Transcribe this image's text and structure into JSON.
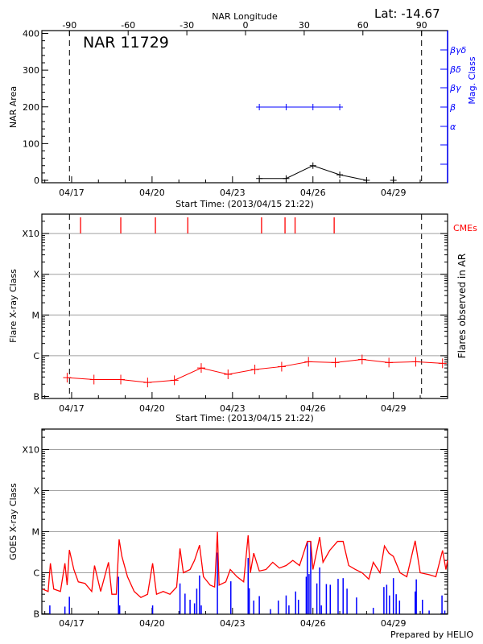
{
  "header": {
    "latitude": "Lat: -14.67",
    "region_label": "NAR 11729",
    "footer": "Prepared by HELIO"
  },
  "colors": {
    "area": "#000000",
    "mag_class": "#0000ff",
    "flares": "#ff0000",
    "cmes": "#ff0000",
    "goes": "#ff0000",
    "goes_flares": "#0000ff",
    "grid": "#a0a0a0"
  },
  "chart_data": [
    {
      "type": "line",
      "panel": "top",
      "top_xlabel": "NAR Longitude",
      "top_ticks": [
        -90,
        -60,
        -30,
        0,
        30,
        60,
        90
      ],
      "xlabel": "Start Time: (2013/04/15 21:22)",
      "ylabel": "NAR Area",
      "right_ylabel": "Mag. Class",
      "ylim": [
        0,
        400
      ],
      "yticks": [
        0,
        100,
        200,
        300,
        400
      ],
      "xlim": [
        "2013-04-15 21:22",
        "2013-05-01 00:30"
      ],
      "xtick_labels": [
        {
          "date": "2013-04-17",
          "label": "04/17"
        },
        {
          "date": "2013-04-20",
          "label": "04/20"
        },
        {
          "date": "2013-04-23",
          "label": "04/23"
        },
        {
          "date": "2013-04-26",
          "label": "04/26"
        },
        {
          "date": "2013-04-29",
          "label": "04/29"
        }
      ],
      "limb_longitudes": [
        -90,
        90
      ],
      "mag_classes": [
        "α",
        "β",
        "βγ",
        "βδ",
        "βγδ"
      ],
      "area_series": [
        {
          "t": "2013-04-24 00:00",
          "v": 5
        },
        {
          "t": "2013-04-25 00:00",
          "v": 5
        },
        {
          "t": "2013-04-26 00:00",
          "v": 40
        },
        {
          "t": "2013-04-27 00:00",
          "v": 15
        },
        {
          "t": "2013-04-28 00:00",
          "v": 0
        },
        {
          "t": "2013-04-29 00:00",
          "v": 0
        }
      ],
      "mag_series": [
        {
          "t": "2013-04-24 00:00",
          "class": "β"
        },
        {
          "t": "2013-04-25 00:00",
          "class": "β"
        },
        {
          "t": "2013-04-26 00:00",
          "class": "β"
        },
        {
          "t": "2013-04-27 00:00",
          "class": "β"
        }
      ]
    },
    {
      "type": "line",
      "panel": "middle",
      "xlabel": "Start Time: (2013/04/15 21:22)",
      "ylabel": "Flare X-ray Class",
      "right_ylabel": "Flares observed in AR",
      "cme_label": "CMEs",
      "yscale": "log",
      "ylim": [
        1e-07,
        0.0003
      ],
      "yticks": [
        {
          "v": 1e-07,
          "label": "B"
        },
        {
          "v": 1e-06,
          "label": "C"
        },
        {
          "v": 1e-05,
          "label": "M"
        },
        {
          "v": 0.0001,
          "label": "X"
        },
        {
          "v": 0.001,
          "label": "X10"
        }
      ],
      "grid": true,
      "series": [
        {
          "t": "2013-04-16 20:00",
          "v": 2.9e-07
        },
        {
          "t": "2013-04-17 20:00",
          "v": 2.6e-07
        },
        {
          "t": "2013-04-18 20:00",
          "v": 2.6e-07
        },
        {
          "t": "2013-04-19 20:00",
          "v": 2.2e-07
        },
        {
          "t": "2013-04-20 20:00",
          "v": 2.5e-07
        },
        {
          "t": "2013-04-21 20:00",
          "v": 5e-07
        },
        {
          "t": "2013-04-22 20:00",
          "v": 3.5e-07
        },
        {
          "t": "2013-04-23 20:00",
          "v": 4.6e-07
        },
        {
          "t": "2013-04-24 20:00",
          "v": 5.4e-07
        },
        {
          "t": "2013-04-25 20:00",
          "v": 7.1e-07
        },
        {
          "t": "2013-04-26 20:00",
          "v": 6.8e-07
        },
        {
          "t": "2013-04-27 20:00",
          "v": 8.1e-07
        },
        {
          "t": "2013-04-28 20:00",
          "v": 6.8e-07
        },
        {
          "t": "2013-04-29 20:00",
          "v": 7.1e-07
        },
        {
          "t": "2013-04-30 20:00",
          "v": 6.5e-07
        }
      ],
      "cmes": [
        "2013-04-17 08:00",
        "2013-04-18 20:00",
        "2013-04-20 03:00",
        "2013-04-21 08:00",
        "2013-04-24 02:00",
        "2013-04-24 23:00",
        "2013-04-25 08:00",
        "2013-04-26 19:00"
      ]
    },
    {
      "type": "line",
      "panel": "bottom",
      "ylabel": "GOES X-ray Class",
      "yscale": "log",
      "ylim": [
        1e-07,
        0.0003
      ],
      "grid": true,
      "goes_series": [
        [
          "2013-04-15 22:00",
          4e-07
        ],
        [
          "2013-04-16 03:00",
          3.5e-07
        ],
        [
          "2013-04-16 05:00",
          1.7e-06
        ],
        [
          "2013-04-16 08:00",
          4e-07
        ],
        [
          "2013-04-16 14:00",
          3.5e-07
        ],
        [
          "2013-04-16 18:00",
          1.7e-06
        ],
        [
          "2013-04-16 20:00",
          5e-07
        ],
        [
          "2013-04-16 22:00",
          3.6e-06
        ],
        [
          "2013-04-17 02:00",
          1.2e-06
        ],
        [
          "2013-04-17 06:00",
          6e-07
        ],
        [
          "2013-04-17 12:00",
          5.5e-07
        ],
        [
          "2013-04-17 18:00",
          3.5e-07
        ],
        [
          "2013-04-17 20:30",
          1.5e-06
        ],
        [
          "2013-04-18 02:00",
          3.5e-07
        ],
        [
          "2013-04-18 09:00",
          1.8e-06
        ],
        [
          "2013-04-18 12:00",
          3e-07
        ],
        [
          "2013-04-18 16:00",
          3e-07
        ],
        [
          "2013-04-18 18:30",
          6.5e-06
        ],
        [
          "2013-04-18 21:00",
          2.5e-06
        ],
        [
          "2013-04-19 02:00",
          8e-07
        ],
        [
          "2013-04-19 08:00",
          3.5e-07
        ],
        [
          "2013-04-19 14:00",
          2.5e-07
        ],
        [
          "2013-04-19 20:00",
          3e-07
        ],
        [
          "2013-04-20 00:30",
          1.7e-06
        ],
        [
          "2013-04-20 04:00",
          3e-07
        ],
        [
          "2013-04-20 10:00",
          3.5e-07
        ],
        [
          "2013-04-20 16:00",
          3e-07
        ],
        [
          "2013-04-20 22:00",
          4.5e-07
        ],
        [
          "2013-04-21 01:00",
          3.9e-06
        ],
        [
          "2013-04-21 04:00",
          1e-06
        ],
        [
          "2013-04-21 10:00",
          1.2e-06
        ],
        [
          "2013-04-21 14:00",
          2e-06
        ],
        [
          "2013-04-21 18:30",
          4.7e-06
        ],
        [
          "2013-04-21 22:00",
          8e-07
        ],
        [
          "2013-04-22 04:00",
          5e-07
        ],
        [
          "2013-04-22 08:00",
          4.5e-07
        ],
        [
          "2013-04-22 10:30",
          1e-05
        ],
        [
          "2013-04-22 12:00",
          5e-07
        ],
        [
          "2013-04-22 18:00",
          6e-07
        ],
        [
          "2013-04-22 22:00",
          1.2e-06
        ],
        [
          "2013-04-23 04:00",
          8e-07
        ],
        [
          "2013-04-23 10:00",
          6e-07
        ],
        [
          "2013-04-23 14:00",
          8.2e-06
        ],
        [
          "2013-04-23 16:00",
          1e-06
        ],
        [
          "2013-04-23 19:00",
          3e-06
        ],
        [
          "2013-04-24 00:00",
          1.1e-06
        ],
        [
          "2013-04-24 06:00",
          1.2e-06
        ],
        [
          "2013-04-24 12:00",
          1.8e-06
        ],
        [
          "2013-04-24 18:00",
          1.3e-06
        ],
        [
          "2013-04-25 00:00",
          1.5e-06
        ],
        [
          "2013-04-25 06:00",
          2e-06
        ],
        [
          "2013-04-25 12:00",
          1.5e-06
        ],
        [
          "2013-04-25 19:00",
          5.8e-06
        ],
        [
          "2013-04-25 22:00",
          5.8e-06
        ],
        [
          "2013-04-26 00:00",
          1.2e-06
        ],
        [
          "2013-04-26 06:00",
          7.4e-06
        ],
        [
          "2013-04-26 09:00",
          1.8e-06
        ],
        [
          "2013-04-26 15:00",
          3.5e-06
        ],
        [
          "2013-04-26 22:00",
          5.8e-06
        ],
        [
          "2013-04-27 03:00",
          5.8e-06
        ],
        [
          "2013-04-27 08:00",
          1.5e-06
        ],
        [
          "2013-04-27 14:00",
          1.2e-06
        ],
        [
          "2013-04-27 20:00",
          1e-06
        ],
        [
          "2013-04-28 02:00",
          7e-07
        ],
        [
          "2013-04-28 06:00",
          1.8e-06
        ],
        [
          "2013-04-28 12:00",
          1e-06
        ],
        [
          "2013-04-28 16:00",
          4.5e-06
        ],
        [
          "2013-04-28 20:00",
          3e-06
        ],
        [
          "2013-04-29 00:00",
          2.5e-06
        ],
        [
          "2013-04-29 06:00",
          1e-06
        ],
        [
          "2013-04-29 12:00",
          8e-07
        ],
        [
          "2013-04-29 19:30",
          6e-06
        ],
        [
          "2013-04-30 00:00",
          1e-06
        ],
        [
          "2013-04-30 08:00",
          9e-07
        ],
        [
          "2013-04-30 14:00",
          8e-07
        ],
        [
          "2013-04-30 20:00",
          3.5e-06
        ],
        [
          "2013-04-30 23:00",
          1.2e-06
        ],
        [
          "2013-05-01 00:30",
          2e-06
        ]
      ],
      "flare_bars": [
        [
          "2013-04-16 04:30",
          1.6e-07
        ],
        [
          "2013-04-16 18:00",
          1.5e-07
        ],
        [
          "2013-04-16 22:00",
          2.6e-07
        ],
        [
          "2013-04-18 18:00",
          8e-07
        ],
        [
          "2013-04-18 19:00",
          1.6e-07
        ],
        [
          "2013-04-20 00:30",
          1.6e-07
        ],
        [
          "2013-04-21 01:00",
          5.5e-07
        ],
        [
          "2013-04-21 05:30",
          3.1e-07
        ],
        [
          "2013-04-21 10:00",
          2.2e-07
        ],
        [
          "2013-04-21 14:00",
          1.8e-07
        ],
        [
          "2013-04-21 16:00",
          4.1e-07
        ],
        [
          "2013-04-21 18:30",
          8.6e-07
        ],
        [
          "2013-04-21 20:00",
          1.6e-07
        ],
        [
          "2013-04-22 10:30",
          3.1e-06
        ],
        [
          "2013-04-22 22:30",
          6.2e-07
        ],
        [
          "2013-04-23 14:00",
          2.3e-06
        ],
        [
          "2013-04-23 15:00",
          4.2e-07
        ],
        [
          "2013-04-23 19:00",
          2.1e-07
        ],
        [
          "2013-04-24 00:00",
          2.7e-07
        ],
        [
          "2013-04-24 10:00",
          1.3e-07
        ],
        [
          "2013-04-24 17:00",
          2.1e-07
        ],
        [
          "2013-04-25 00:00",
          2.8e-07
        ],
        [
          "2013-04-25 02:30",
          1.6e-07
        ],
        [
          "2013-04-25 08:30",
          3.5e-07
        ],
        [
          "2013-04-25 11:00",
          2.2e-07
        ],
        [
          "2013-04-25 18:00",
          8e-07
        ],
        [
          "2013-04-25 19:00",
          5.8e-06
        ],
        [
          "2013-04-25 20:30",
          9.3e-07
        ],
        [
          "2013-04-25 22:00",
          5.8e-06
        ],
        [
          "2013-04-26 03:30",
          5.5e-07
        ],
        [
          "2013-04-26 06:00",
          1.35e-06
        ],
        [
          "2013-04-26 07:30",
          1.6e-07
        ],
        [
          "2013-04-26 12:00",
          5.3e-07
        ],
        [
          "2013-04-26 15:30",
          5.1e-07
        ],
        [
          "2013-04-26 22:30",
          7.1e-07
        ],
        [
          "2013-04-27 03:00",
          7.4e-07
        ],
        [
          "2013-04-27 06:30",
          4.1e-07
        ],
        [
          "2013-04-27 15:00",
          2.5e-07
        ],
        [
          "2013-04-28 06:00",
          1.4e-07
        ],
        [
          "2013-04-28 15:30",
          4.5e-07
        ],
        [
          "2013-04-28 18:00",
          5.1e-07
        ],
        [
          "2013-04-28 20:30",
          2.8e-07
        ],
        [
          "2013-04-29 00:00",
          7.4e-07
        ],
        [
          "2013-04-29 02:30",
          3e-07
        ],
        [
          "2013-04-29 05:30",
          2.1e-07
        ],
        [
          "2013-04-29 19:30",
          3.5e-07
        ],
        [
          "2013-04-29 20:30",
          6.9e-07
        ],
        [
          "2013-04-30 02:00",
          2.2e-07
        ],
        [
          "2013-04-30 08:00",
          1.2e-07
        ],
        [
          "2013-04-30 19:30",
          2.8e-07
        ],
        [
          "2013-04-30 22:00",
          1.2e-07
        ]
      ]
    }
  ]
}
